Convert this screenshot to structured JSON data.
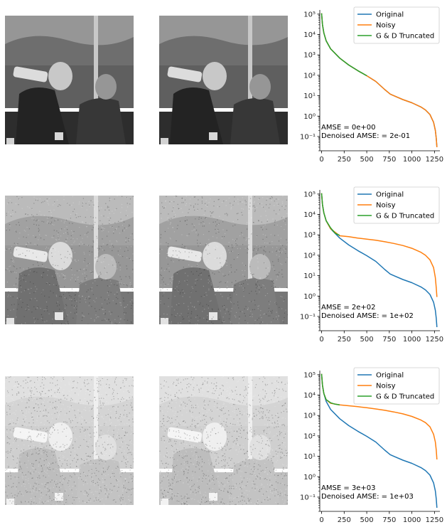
{
  "chart_data": [
    {
      "type": "line",
      "yscale": "log",
      "xlim": [
        -20,
        1310
      ],
      "ylim": [
        0.02,
        160000
      ],
      "x_ticks": [
        0,
        250,
        500,
        750,
        1000,
        1250
      ],
      "x_tick_labels": [
        "0",
        "250",
        "500",
        "750",
        "1000",
        "1250"
      ],
      "y_tick_labels": [
        "10⁻¹",
        "10⁰",
        "10¹",
        "10²",
        "10³",
        "10⁴",
        "10⁵"
      ],
      "grid": false,
      "legend_position": "top-right",
      "amse_text": "AMSE = 0e+00",
      "denoised_amse_text": "Denoised AMSE: = 2e-01",
      "series": [
        {
          "name": "Original",
          "color": "#1f77b4",
          "x": [
            0,
            10,
            25,
            50,
            100,
            200,
            300,
            400,
            500,
            600,
            700,
            760,
            800,
            900,
            1000,
            1100,
            1150,
            1200,
            1240,
            1260,
            1270,
            1277
          ],
          "y": [
            110000,
            30000,
            12000,
            5000,
            2000,
            700,
            320,
            170,
            95,
            50,
            20,
            12,
            10,
            6.5,
            4.5,
            2.8,
            2,
            1.2,
            0.5,
            0.2,
            0.08,
            0.03
          ]
        },
        {
          "name": "Noisy",
          "color": "#ff7f0e",
          "x": [
            0,
            10,
            25,
            50,
            100,
            200,
            300,
            400,
            500,
            600,
            700,
            760,
            800,
            900,
            1000,
            1100,
            1150,
            1200,
            1240,
            1260,
            1270,
            1277
          ],
          "y": [
            110000,
            30000,
            12000,
            5000,
            2000,
            700,
            320,
            170,
            95,
            50,
            20,
            12,
            10,
            6.5,
            4.5,
            2.8,
            2,
            1.2,
            0.5,
            0.2,
            0.08,
            0.03
          ]
        },
        {
          "name": "G & D Truncated",
          "color": "#2ca02c",
          "x": [
            0,
            10,
            25,
            50,
            100,
            200,
            300,
            400,
            500
          ],
          "y": [
            110000,
            30000,
            12000,
            5000,
            2000,
            700,
            320,
            170,
            95
          ]
        }
      ]
    },
    {
      "type": "line",
      "yscale": "log",
      "xlim": [
        -20,
        1310
      ],
      "ylim": [
        0.02,
        160000
      ],
      "x_ticks": [
        0,
        250,
        500,
        750,
        1000,
        1250
      ],
      "x_tick_labels": [
        "0",
        "250",
        "500",
        "750",
        "1000",
        "1250"
      ],
      "y_tick_labels": [
        "10⁻¹",
        "10⁰",
        "10¹",
        "10²",
        "10³",
        "10⁴",
        "10⁵"
      ],
      "grid": false,
      "legend_position": "top-right",
      "amse_text": "AMSE = 2e+02",
      "denoised_amse_text": "Denoised AMSE: = 1e+02",
      "series": [
        {
          "name": "Original",
          "color": "#1f77b4",
          "x": [
            0,
            10,
            25,
            50,
            100,
            200,
            300,
            400,
            500,
            600,
            700,
            760,
            800,
            900,
            1000,
            1100,
            1150,
            1200,
            1240,
            1260,
            1270,
            1277
          ],
          "y": [
            110000,
            30000,
            12000,
            5000,
            2000,
            700,
            320,
            170,
            95,
            50,
            20,
            12,
            10,
            6.5,
            4.5,
            2.8,
            2,
            1.2,
            0.5,
            0.2,
            0.08,
            0.03
          ]
        },
        {
          "name": "Noisy",
          "color": "#ff7f0e",
          "x": [
            0,
            10,
            25,
            50,
            100,
            200,
            300,
            400,
            500,
            600,
            700,
            800,
            900,
            1000,
            1100,
            1150,
            1200,
            1240,
            1260,
            1270,
            1277
          ],
          "y": [
            110000,
            30000,
            12000,
            5000,
            2000,
            900,
            820,
            700,
            620,
            550,
            460,
            380,
            300,
            220,
            140,
            100,
            60,
            25,
            8,
            2.5,
            0.9
          ]
        },
        {
          "name": "G & D Truncated",
          "color": "#2ca02c",
          "x": [
            0,
            10,
            25,
            50,
            100,
            150,
            200
          ],
          "y": [
            110000,
            30000,
            12000,
            5000,
            2200,
            1200,
            950
          ]
        }
      ]
    },
    {
      "type": "line",
      "yscale": "log",
      "xlim": [
        -20,
        1310
      ],
      "ylim": [
        0.02,
        160000
      ],
      "x_ticks": [
        0,
        250,
        500,
        750,
        1000,
        1250
      ],
      "x_tick_labels": [
        "0",
        "250",
        "500",
        "750",
        "1000",
        "1250"
      ],
      "y_tick_labels": [
        "10⁻¹",
        "10⁰",
        "10¹",
        "10²",
        "10³",
        "10⁴",
        "10⁵"
      ],
      "grid": false,
      "legend_position": "top-right",
      "amse_text": "AMSE = 3e+03",
      "denoised_amse_text": "Denoised AMSE: = 1e+03",
      "series": [
        {
          "name": "Original",
          "color": "#1f77b4",
          "x": [
            0,
            10,
            25,
            50,
            100,
            200,
            300,
            400,
            500,
            600,
            700,
            760,
            800,
            900,
            1000,
            1100,
            1150,
            1200,
            1240,
            1260,
            1270,
            1277
          ],
          "y": [
            110000,
            30000,
            12000,
            5000,
            2000,
            700,
            320,
            170,
            95,
            50,
            20,
            12,
            10,
            6.5,
            4.5,
            2.8,
            2,
            1.2,
            0.5,
            0.2,
            0.08,
            0.03
          ]
        },
        {
          "name": "Noisy",
          "color": "#ff7f0e",
          "x": [
            0,
            10,
            25,
            50,
            100,
            200,
            300,
            400,
            500,
            600,
            700,
            800,
            900,
            1000,
            1100,
            1150,
            1200,
            1240,
            1260,
            1270,
            1277
          ],
          "y": [
            110000,
            30000,
            12000,
            6000,
            4000,
            3300,
            3000,
            2700,
            2400,
            2100,
            1800,
            1500,
            1200,
            900,
            600,
            450,
            280,
            120,
            50,
            20,
            7
          ]
        },
        {
          "name": "G & D Truncated",
          "color": "#2ca02c",
          "x": [
            0,
            10,
            25,
            50,
            100,
            150,
            200
          ],
          "y": [
            110000,
            30000,
            12000,
            6000,
            4200,
            3600,
            3300
          ]
        }
      ]
    }
  ]
}
